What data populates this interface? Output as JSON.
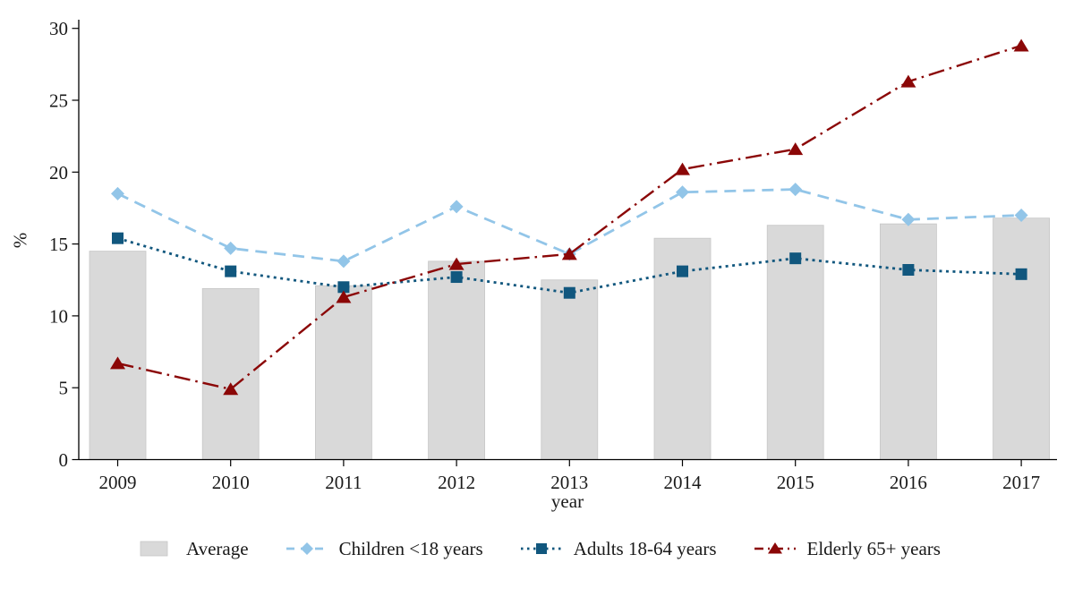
{
  "figure": {
    "background": "#ffffff",
    "text_color": "#1a1a1a",
    "axis_color": "#000000"
  },
  "chart_data": {
    "type": "combo-bar-line",
    "title": "",
    "xlabel": "year",
    "ylabel": "%",
    "ylim": [
      0,
      30
    ],
    "yticks": [
      0,
      5,
      10,
      15,
      20,
      25,
      30
    ],
    "grid": false,
    "legend_position": "bottom",
    "categories": [
      "2009",
      "2010",
      "2011",
      "2012",
      "2013",
      "2014",
      "2015",
      "2016",
      "2017"
    ],
    "series": [
      {
        "name": "Average",
        "type": "bar",
        "color": "#d9d9d9",
        "border_color": "#c6c6c6",
        "values": [
          14.5,
          11.9,
          12.1,
          13.8,
          12.5,
          15.4,
          16.3,
          16.4,
          16.8
        ]
      },
      {
        "name": "Children <18 years",
        "type": "line",
        "dash": "dash",
        "marker": "diamond",
        "color": "#92c5e8",
        "values": [
          18.5,
          14.7,
          13.8,
          17.6,
          14.3,
          18.6,
          18.8,
          16.7,
          17.0
        ]
      },
      {
        "name": "Adults 18-64 years",
        "type": "line",
        "dash": "dot",
        "marker": "square",
        "color": "#11577e",
        "values": [
          15.4,
          13.1,
          12.0,
          12.7,
          11.6,
          13.1,
          14.0,
          13.2,
          12.9
        ]
      },
      {
        "name": "Elderly 65+ years",
        "type": "line",
        "dash": "dashdot",
        "marker": "triangle",
        "color": "#8b0707",
        "values": [
          6.7,
          4.9,
          11.3,
          13.6,
          14.3,
          20.2,
          21.6,
          26.3,
          28.8
        ]
      }
    ]
  }
}
